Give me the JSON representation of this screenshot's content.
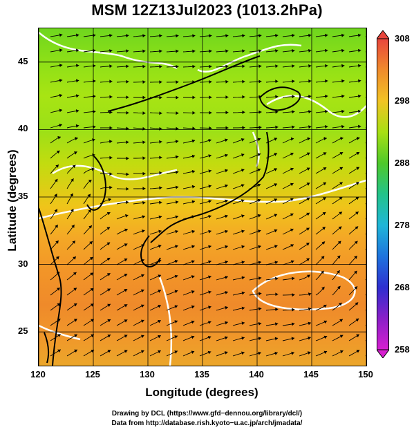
{
  "title": "MSM 12Z13Jul2023 (1013.2hPa)",
  "map": {
    "xlabel": "Longitude (degrees)",
    "ylabel": "Latitude  (degrees)",
    "xlim": [
      120,
      150
    ],
    "ylim": [
      22.5,
      47.5
    ],
    "x_ticks": [
      "120",
      "125",
      "130",
      "135",
      "140",
      "145",
      "150"
    ],
    "y_ticks": [
      "25",
      "30",
      "35",
      "40",
      "45"
    ],
    "x_tick_values": [
      120,
      125,
      130,
      135,
      140,
      145,
      150
    ],
    "y_tick_values": [
      25,
      30,
      35,
      40,
      45
    ]
  },
  "colorbar": {
    "labels": [
      "308",
      "298",
      "288",
      "278",
      "268",
      "258"
    ],
    "range": [
      258,
      308
    ],
    "colors_top_to_bottom": [
      "#e8453c",
      "#f08b2c",
      "#f2c324",
      "#a8e013",
      "#4ec92a",
      "#23c38a",
      "#1fb6d8",
      "#1e73de",
      "#2f2fd0",
      "#8a1fc8",
      "#d61fcf"
    ]
  },
  "credits": {
    "line1": "Drawing by DCL (https://www.gfd−dennou.org/library/dcl/)",
    "line2": "Data from http://database.rish.kyoto−u.ac.jp/arch/jmadata/"
  },
  "colors": {
    "land_outline": "#000000",
    "contour": "#ffffff",
    "streamline": "#000000"
  }
}
